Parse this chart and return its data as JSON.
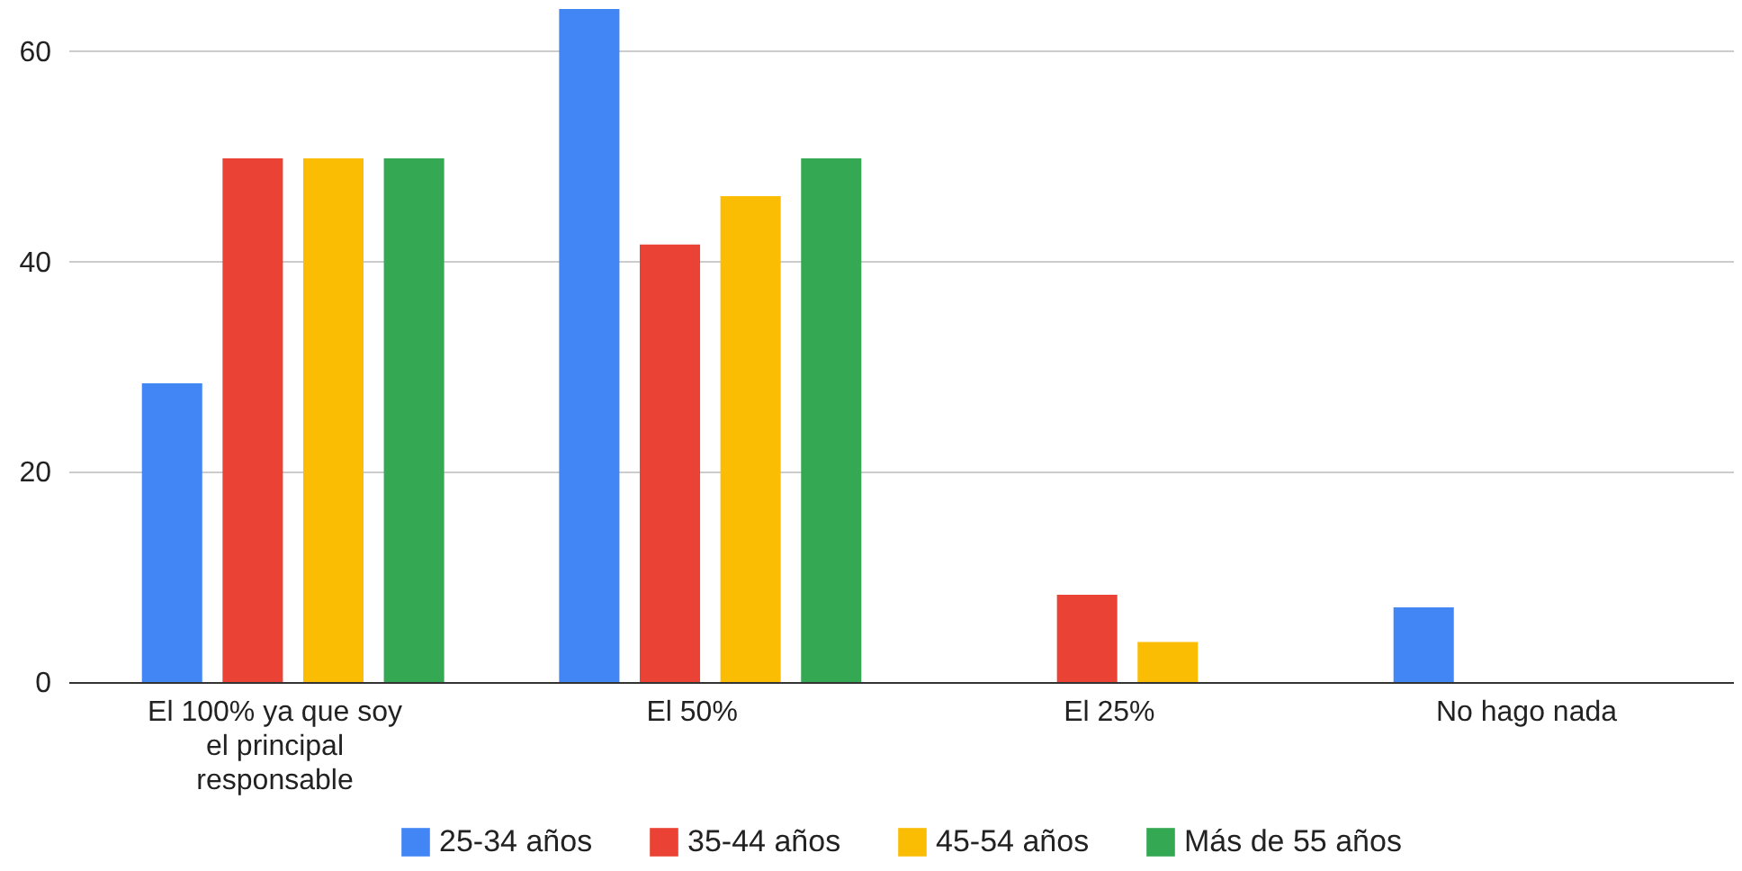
{
  "chart_data": {
    "type": "bar",
    "categories": [
      "El 100% ya que soy el principal responsable",
      "El 50%",
      "El 25%",
      "No hago nada"
    ],
    "series": [
      {
        "name": "25-34 años",
        "color": "#4285f4",
        "values": [
          28.4,
          64,
          null,
          7.1
        ]
      },
      {
        "name": "35-44 años",
        "color": "#ea4335",
        "values": [
          49.8,
          41.6,
          8.3,
          null
        ]
      },
      {
        "name": "45-54 años",
        "color": "#fbbc04",
        "values": [
          49.8,
          46.2,
          3.8,
          null
        ]
      },
      {
        "name": "Más de 55 años",
        "color": "#34a853",
        "values": [
          49.8,
          49.8,
          null,
          null
        ]
      }
    ],
    "ylim": [
      0,
      64
    ],
    "yticks": [
      0,
      20,
      40,
      60
    ],
    "grid": "y",
    "legend": "bottom"
  }
}
